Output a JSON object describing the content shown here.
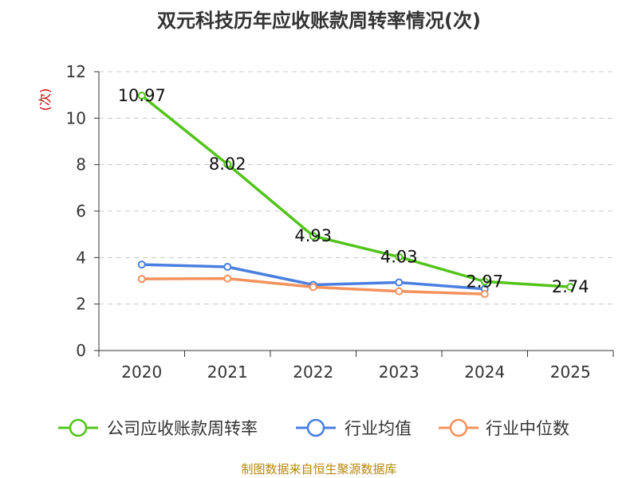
{
  "chart_data": {
    "type": "line",
    "title": "双元科技历年应收账款周转率情况(次)",
    "ylabel": "(次)",
    "xlabel": "",
    "ylim": [
      0,
      12
    ],
    "yticks": [
      0,
      2,
      4,
      6,
      8,
      10,
      12
    ],
    "grid": true,
    "categories": [
      "2020",
      "2021",
      "2022",
      "2023",
      "2024",
      "2025"
    ],
    "series": [
      {
        "name": "公司应收账款周转率",
        "color": "#52c41a",
        "values": [
          10.97,
          8.02,
          4.93,
          4.03,
          2.97,
          2.74
        ],
        "labels": [
          "10.97",
          "8.02",
          "4.93",
          "4.03",
          "2.97",
          "2.74"
        ]
      },
      {
        "name": "行业均值",
        "color": "#4a7fe0",
        "values": [
          3.7,
          3.6,
          2.83,
          2.93,
          2.65,
          null
        ]
      },
      {
        "name": "行业中位数",
        "color": "#f5925c",
        "values": [
          3.08,
          3.1,
          2.73,
          2.55,
          2.43,
          null
        ]
      }
    ],
    "legend_position": "bottom",
    "source": "制图数据来自恒生聚源数据库"
  }
}
